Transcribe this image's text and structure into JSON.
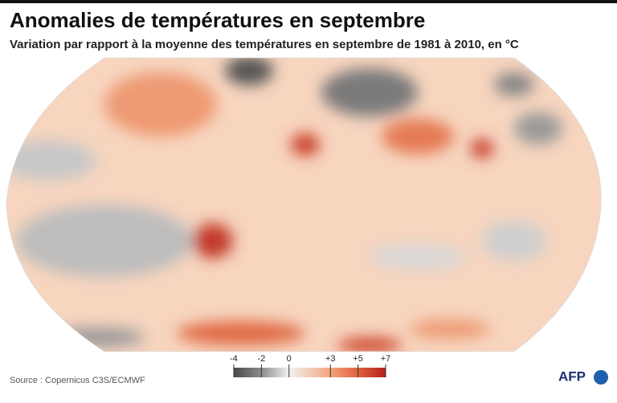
{
  "header": {
    "title": "Anomalies de températures en septembre",
    "subtitle": "Variation par rapport à la moyenne des températures en septembre de 1981 à 2010, en °C"
  },
  "legend": {
    "ticks": [
      {
        "value": -4,
        "label": "-4"
      },
      {
        "value": -2,
        "label": "-2"
      },
      0,
      {
        "value": 3,
        "label": "+3"
      },
      {
        "value": 5,
        "label": "+5"
      },
      {
        "value": 7,
        "label": "+7"
      }
    ],
    "colors": [
      "#4a4a4a",
      "#8c8c8c",
      "#f2f2f2",
      "#f3a57e",
      "#e0603c",
      "#b41f1f"
    ]
  },
  "footer": {
    "source": "Source : Copernicus C3S/ECMWF",
    "logo": "AFP"
  }
}
